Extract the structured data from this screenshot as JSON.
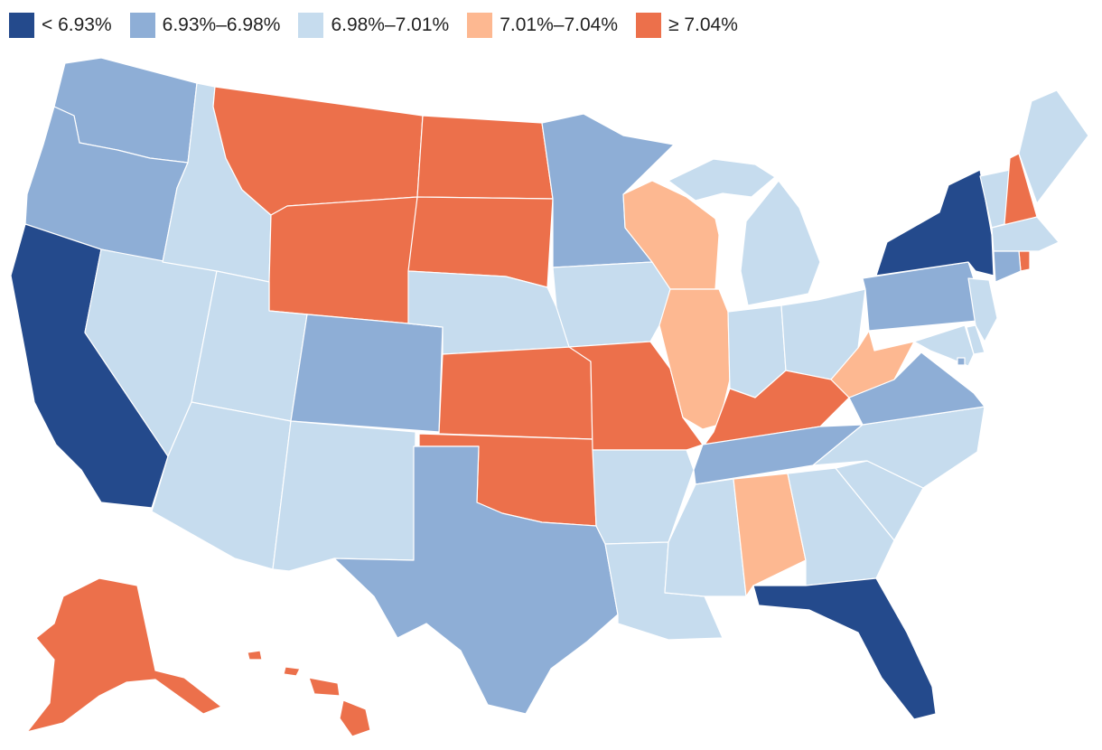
{
  "legend": {
    "items": [
      {
        "label": "< 6.93%",
        "bin": 0
      },
      {
        "label": "6.93%–6.98%",
        "bin": 1
      },
      {
        "label": "6.98%–7.01%",
        "bin": 2
      },
      {
        "label": "7.01%–7.04%",
        "bin": 3
      },
      {
        "label": "≥ 7.04%",
        "bin": 4
      }
    ]
  },
  "colors": [
    "#244a8c",
    "#8eaed6",
    "#c6dcee",
    "#fdb891",
    "#ec704b"
  ],
  "states": [
    {
      "name": "WA",
      "bin": 1
    },
    {
      "name": "OR",
      "bin": 1
    },
    {
      "name": "CA",
      "bin": 0
    },
    {
      "name": "NV",
      "bin": 2
    },
    {
      "name": "ID",
      "bin": 2
    },
    {
      "name": "MT",
      "bin": 4
    },
    {
      "name": "WY",
      "bin": 4
    },
    {
      "name": "UT",
      "bin": 2
    },
    {
      "name": "AZ",
      "bin": 2
    },
    {
      "name": "CO",
      "bin": 1
    },
    {
      "name": "NM",
      "bin": 2
    },
    {
      "name": "ND",
      "bin": 4
    },
    {
      "name": "SD",
      "bin": 4
    },
    {
      "name": "NE",
      "bin": 2
    },
    {
      "name": "KS",
      "bin": 4
    },
    {
      "name": "OK",
      "bin": 4
    },
    {
      "name": "TX",
      "bin": 1
    },
    {
      "name": "MN",
      "bin": 1
    },
    {
      "name": "IA",
      "bin": 2
    },
    {
      "name": "MO",
      "bin": 4
    },
    {
      "name": "AR",
      "bin": 2
    },
    {
      "name": "LA",
      "bin": 2
    },
    {
      "name": "WI",
      "bin": 3
    },
    {
      "name": "IL",
      "bin": 3
    },
    {
      "name": "MI",
      "bin": 2
    },
    {
      "name": "IN",
      "bin": 2
    },
    {
      "name": "OH",
      "bin": 2
    },
    {
      "name": "KY",
      "bin": 4
    },
    {
      "name": "TN",
      "bin": 1
    },
    {
      "name": "MS",
      "bin": 2
    },
    {
      "name": "AL",
      "bin": 3
    },
    {
      "name": "GA",
      "bin": 2
    },
    {
      "name": "FL",
      "bin": 0
    },
    {
      "name": "SC",
      "bin": 2
    },
    {
      "name": "NC",
      "bin": 2
    },
    {
      "name": "VA",
      "bin": 1
    },
    {
      "name": "WV",
      "bin": 3
    },
    {
      "name": "PA",
      "bin": 1
    },
    {
      "name": "NY",
      "bin": 0
    },
    {
      "name": "VT",
      "bin": 2
    },
    {
      "name": "NH",
      "bin": 4
    },
    {
      "name": "ME",
      "bin": 2
    },
    {
      "name": "MA",
      "bin": 2
    },
    {
      "name": "RI",
      "bin": 4
    },
    {
      "name": "CT",
      "bin": 1
    },
    {
      "name": "NJ",
      "bin": 2
    },
    {
      "name": "DE",
      "bin": 2
    },
    {
      "name": "MD",
      "bin": 2
    },
    {
      "name": "DC",
      "bin": 1
    },
    {
      "name": "AK",
      "bin": 4
    },
    {
      "name": "HI",
      "bin": 4
    }
  ]
}
